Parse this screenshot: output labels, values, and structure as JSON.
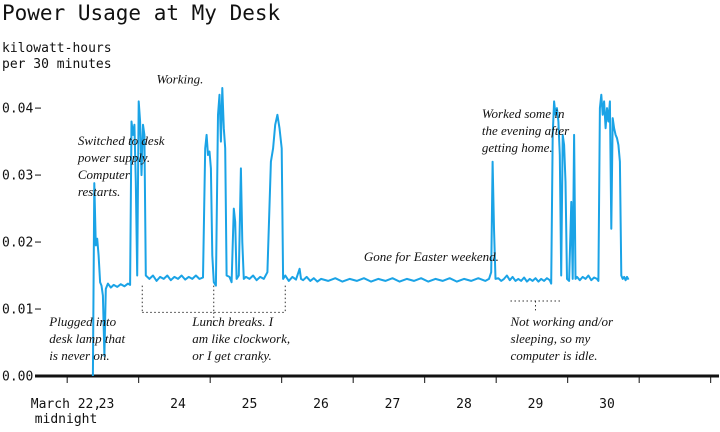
{
  "chart_data": {
    "type": "line",
    "title": "Power Usage at My Desk",
    "ylabel": [
      "kilowatt-hours",
      "per 30 minutes"
    ],
    "ylim": [
      0,
      0.043
    ],
    "xlim": [
      0,
      9.3
    ],
    "y_ticks": [
      {
        "value": 0.0,
        "label": "0.00"
      },
      {
        "value": 0.01,
        "label": "0.01"
      },
      {
        "value": 0.02,
        "label": "0.02"
      },
      {
        "value": 0.03,
        "label": "0.03"
      },
      {
        "value": 0.04,
        "label": "0.04"
      }
    ],
    "x_tick_labels": [
      {
        "value": 0.0,
        "lines": [
          "March 22,",
          "midnight"
        ]
      },
      {
        "value": 1,
        "lines": [
          "23"
        ]
      },
      {
        "value": 2,
        "lines": [
          "24"
        ]
      },
      {
        "value": 3,
        "lines": [
          "25"
        ]
      },
      {
        "value": 4,
        "lines": [
          "26"
        ]
      },
      {
        "value": 5,
        "lines": [
          "27"
        ]
      },
      {
        "value": 6,
        "lines": [
          "28"
        ]
      },
      {
        "value": 7,
        "lines": [
          "29"
        ]
      },
      {
        "value": 8,
        "lines": [
          "30"
        ]
      }
    ],
    "color": "#1aa3e6",
    "grid": false,
    "series": [
      {
        "points": [
          [
            0.81,
            0.0
          ],
          [
            0.83,
            0.0288
          ],
          [
            0.85,
            0.0195
          ],
          [
            0.87,
            0.0205
          ],
          [
            0.89,
            0.018
          ],
          [
            0.91,
            0.014
          ],
          [
            0.93,
            0.0135
          ],
          [
            0.95,
            0.012
          ],
          [
            0.97,
            0.003
          ],
          [
            0.99,
            0.013
          ],
          [
            1.02,
            0.0138
          ],
          [
            1.06,
            0.0132
          ],
          [
            1.1,
            0.0136
          ],
          [
            1.15,
            0.0133
          ],
          [
            1.2,
            0.0137
          ],
          [
            1.25,
            0.0134
          ],
          [
            1.3,
            0.0138
          ],
          [
            1.33,
            0.0136
          ],
          [
            1.35,
            0.038
          ],
          [
            1.37,
            0.036
          ],
          [
            1.39,
            0.0375
          ],
          [
            1.41,
            0.029
          ],
          [
            1.43,
            0.015
          ],
          [
            1.45,
            0.041
          ],
          [
            1.47,
            0.038
          ],
          [
            1.49,
            0.03
          ],
          [
            1.51,
            0.0375
          ],
          [
            1.53,
            0.036
          ],
          [
            1.55,
            0.015
          ],
          [
            1.6,
            0.0145
          ],
          [
            1.65,
            0.015
          ],
          [
            1.7,
            0.0142
          ],
          [
            1.75,
            0.0148
          ],
          [
            1.8,
            0.0145
          ],
          [
            1.85,
            0.015
          ],
          [
            1.9,
            0.0143
          ],
          [
            1.95,
            0.0148
          ],
          [
            2.0,
            0.0145
          ],
          [
            2.05,
            0.015
          ],
          [
            2.1,
            0.0144
          ],
          [
            2.15,
            0.0148
          ],
          [
            2.2,
            0.0145
          ],
          [
            2.25,
            0.015
          ],
          [
            2.3,
            0.0145
          ],
          [
            2.35,
            0.0147
          ],
          [
            2.38,
            0.034
          ],
          [
            2.4,
            0.036
          ],
          [
            2.42,
            0.033
          ],
          [
            2.44,
            0.0335
          ],
          [
            2.46,
            0.031
          ],
          [
            2.48,
            0.018
          ],
          [
            2.5,
            0.014
          ],
          [
            2.53,
            0.0135
          ],
          [
            2.56,
            0.039
          ],
          [
            2.58,
            0.042
          ],
          [
            2.6,
            0.035
          ],
          [
            2.62,
            0.043
          ],
          [
            2.64,
            0.037
          ],
          [
            2.66,
            0.034
          ],
          [
            2.68,
            0.015
          ],
          [
            2.72,
            0.0148
          ],
          [
            2.75,
            0.014
          ],
          [
            2.78,
            0.025
          ],
          [
            2.8,
            0.023
          ],
          [
            2.82,
            0.0145
          ],
          [
            2.85,
            0.015
          ],
          [
            2.88,
            0.031
          ],
          [
            2.9,
            0.02
          ],
          [
            2.92,
            0.0145
          ],
          [
            2.95,
            0.0148
          ],
          [
            3.0,
            0.0145
          ],
          [
            3.05,
            0.015
          ],
          [
            3.1,
            0.0143
          ],
          [
            3.15,
            0.0148
          ],
          [
            3.2,
            0.0145
          ],
          [
            3.25,
            0.0155
          ],
          [
            3.3,
            0.032
          ],
          [
            3.33,
            0.034
          ],
          [
            3.36,
            0.0375
          ],
          [
            3.39,
            0.039
          ],
          [
            3.42,
            0.037
          ],
          [
            3.45,
            0.034
          ],
          [
            3.47,
            0.0145
          ],
          [
            3.5,
            0.015
          ],
          [
            3.55,
            0.0142
          ],
          [
            3.6,
            0.0148
          ],
          [
            3.65,
            0.0144
          ],
          [
            3.7,
            0.016
          ],
          [
            3.72,
            0.0145
          ],
          [
            3.75,
            0.0143
          ],
          [
            3.8,
            0.0148
          ],
          [
            3.85,
            0.0142
          ],
          [
            3.9,
            0.0146
          ],
          [
            3.95,
            0.0141
          ],
          [
            4.0,
            0.0145
          ],
          [
            4.1,
            0.0142
          ],
          [
            4.2,
            0.0146
          ],
          [
            4.3,
            0.0141
          ],
          [
            4.4,
            0.0145
          ],
          [
            4.5,
            0.0142
          ],
          [
            4.6,
            0.0146
          ],
          [
            4.7,
            0.0141
          ],
          [
            4.8,
            0.0145
          ],
          [
            4.9,
            0.0142
          ],
          [
            5.0,
            0.0146
          ],
          [
            5.1,
            0.0141
          ],
          [
            5.2,
            0.0145
          ],
          [
            5.3,
            0.0142
          ],
          [
            5.4,
            0.0146
          ],
          [
            5.5,
            0.0141
          ],
          [
            5.6,
            0.0145
          ],
          [
            5.7,
            0.0142
          ],
          [
            5.8,
            0.0146
          ],
          [
            5.9,
            0.0141
          ],
          [
            6.0,
            0.0145
          ],
          [
            6.1,
            0.0142
          ],
          [
            6.2,
            0.0146
          ],
          [
            6.3,
            0.0142
          ],
          [
            6.35,
            0.0145
          ],
          [
            6.38,
            0.0155
          ],
          [
            6.4,
            0.032
          ],
          [
            6.42,
            0.022
          ],
          [
            6.44,
            0.0145
          ],
          [
            6.48,
            0.0146
          ],
          [
            6.52,
            0.0142
          ],
          [
            6.56,
            0.0145
          ],
          [
            6.6,
            0.015
          ],
          [
            6.64,
            0.0143
          ],
          [
            6.68,
            0.0148
          ],
          [
            6.72,
            0.0142
          ],
          [
            6.76,
            0.0145
          ],
          [
            6.8,
            0.0142
          ],
          [
            6.84,
            0.0147
          ],
          [
            6.88,
            0.0141
          ],
          [
            6.92,
            0.0145
          ],
          [
            6.96,
            0.0142
          ],
          [
            7.0,
            0.0146
          ],
          [
            7.04,
            0.0141
          ],
          [
            7.08,
            0.0145
          ],
          [
            7.12,
            0.0142
          ],
          [
            7.16,
            0.0146
          ],
          [
            7.2,
            0.0143
          ],
          [
            7.22,
            0.0138
          ],
          [
            7.24,
            0.036
          ],
          [
            7.26,
            0.041
          ],
          [
            7.28,
            0.039
          ],
          [
            7.3,
            0.04
          ],
          [
            7.32,
            0.038
          ],
          [
            7.34,
            0.033
          ],
          [
            7.36,
            0.015
          ],
          [
            7.38,
            0.036
          ],
          [
            7.4,
            0.0345
          ],
          [
            7.42,
            0.029
          ],
          [
            7.44,
            0.0145
          ],
          [
            7.47,
            0.0142
          ],
          [
            7.5,
            0.026
          ],
          [
            7.52,
            0.0145
          ],
          [
            7.54,
            0.036
          ],
          [
            7.56,
            0.0145
          ],
          [
            7.58,
            0.0148
          ],
          [
            7.62,
            0.0143
          ],
          [
            7.66,
            0.0148
          ],
          [
            7.7,
            0.0145
          ],
          [
            7.74,
            0.015
          ],
          [
            7.78,
            0.0143
          ],
          [
            7.82,
            0.0147
          ],
          [
            7.86,
            0.0145
          ],
          [
            7.88,
            0.0142
          ],
          [
            7.9,
            0.04
          ],
          [
            7.92,
            0.042
          ],
          [
            7.94,
            0.039
          ],
          [
            7.96,
            0.041
          ],
          [
            7.98,
            0.037
          ],
          [
            8.0,
            0.04
          ],
          [
            8.02,
            0.038
          ],
          [
            8.04,
            0.041
          ],
          [
            8.06,
            0.022
          ],
          [
            8.08,
            0.0385
          ],
          [
            8.1,
            0.037
          ],
          [
            8.12,
            0.036
          ],
          [
            8.14,
            0.0355
          ],
          [
            8.16,
            0.0345
          ],
          [
            8.18,
            0.032
          ],
          [
            8.2,
            0.015
          ],
          [
            8.22,
            0.0145
          ],
          [
            8.24,
            0.0148
          ],
          [
            8.26,
            0.0143
          ],
          [
            8.28,
            0.0148
          ],
          [
            8.3,
            0.0144
          ]
        ]
      }
    ],
    "annotations": [
      {
        "lines": [
          "Working."
        ],
        "x": 1.7,
        "y": 0.0437
      },
      {
        "lines": [
          "Switched to desk",
          "power supply.",
          "Computer",
          "restarts."
        ],
        "x": 0.6,
        "y": 0.0345
      },
      {
        "lines": [
          "Plugged into",
          "desk lamp that",
          "is never on."
        ],
        "x": 0.2,
        "y": 0.0075
      },
      {
        "lines": [
          "Lunch breaks. I",
          "am like clockwork,",
          "or I get cranky."
        ],
        "x": 2.2,
        "y": 0.0075
      },
      {
        "lines": [
          "Gone for Easter weekend."
        ],
        "x": 4.6,
        "y": 0.0172
      },
      {
        "lines": [
          "Worked some in",
          "the evening after",
          "getting home."
        ],
        "x": 6.25,
        "y": 0.0385
      },
      {
        "lines": [
          "Not working and/or",
          "sleeping, so my",
          "computer is idle."
        ],
        "x": 6.65,
        "y": 0.0075
      }
    ],
    "brackets": [
      {
        "from": 1.5,
        "to": 3.5,
        "y": 0.0095,
        "ticks": [
          1.5,
          2.5,
          3.5
        ],
        "stem_to": 0.0075,
        "stem_at": 2.5
      },
      {
        "from": 6.65,
        "to": 7.35,
        "y": 0.0112,
        "ticks": [],
        "stem_to": 0.0098,
        "stem_at": 7.0
      }
    ]
  }
}
